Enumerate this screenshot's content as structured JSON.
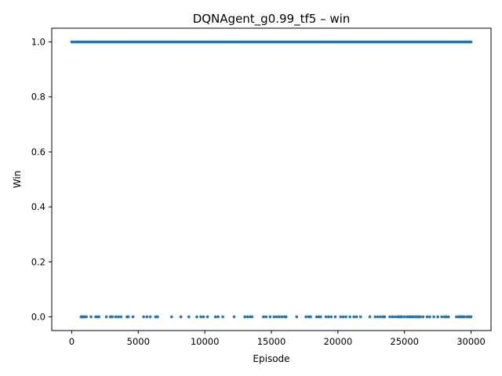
{
  "chart_data": {
    "type": "scatter",
    "title": "DQNAgent_g0.99_tf5 – win",
    "xlabel": "Episode",
    "ylabel": "Win",
    "xlim": [
      -1500,
      31500
    ],
    "ylim": [
      -0.05,
      1.05
    ],
    "xticks": [
      0,
      5000,
      10000,
      15000,
      20000,
      25000,
      30000
    ],
    "yticks": [
      0.0,
      0.2,
      0.4,
      0.6,
      0.8,
      1.0
    ],
    "xtick_labels": [
      "0",
      "5000",
      "10000",
      "15000",
      "20000",
      "25000",
      "30000"
    ],
    "ytick_labels": [
      "0.0",
      "0.2",
      "0.4",
      "0.6",
      "0.8",
      "1.0"
    ],
    "grid": false,
    "legend": "none",
    "color": "#1f77b4",
    "series": [
      {
        "x_range_dense": [
          0,
          30000
        ],
        "y_dense": 1.0,
        "zero_episodes": [
          700,
          800,
          850,
          900,
          1000,
          1100,
          1450,
          1800,
          1950,
          2050,
          2600,
          2900,
          3050,
          3300,
          3500,
          3700,
          4150,
          4250,
          4600,
          5400,
          5650,
          5900,
          6300,
          6450,
          7500,
          8200,
          8800,
          9400,
          9700,
          9900,
          10200,
          10800,
          11000,
          11350,
          12200,
          13000,
          13200,
          13400,
          13550,
          14400,
          14600,
          14900,
          15200,
          15400,
          15600,
          15800,
          16000,
          16100,
          16900,
          17600,
          17800,
          17950,
          18400,
          18550,
          18700,
          19100,
          19300,
          19500,
          19800,
          20200,
          20400,
          20600,
          20900,
          21200,
          21400,
          21700,
          22400,
          22800,
          23000,
          23200,
          23400,
          23500,
          23900,
          24100,
          24300,
          24500,
          24600,
          24700,
          24800,
          25000,
          25200,
          25350,
          25450,
          25550,
          25650,
          25800,
          25900,
          26000,
          26100,
          26200,
          26400,
          26700,
          26900,
          27200,
          27500,
          27800,
          28000,
          28150,
          28300,
          28900,
          29050,
          29150,
          29250,
          29350,
          29450,
          29500,
          29700,
          29800,
          29900,
          30000
        ]
      }
    ]
  }
}
